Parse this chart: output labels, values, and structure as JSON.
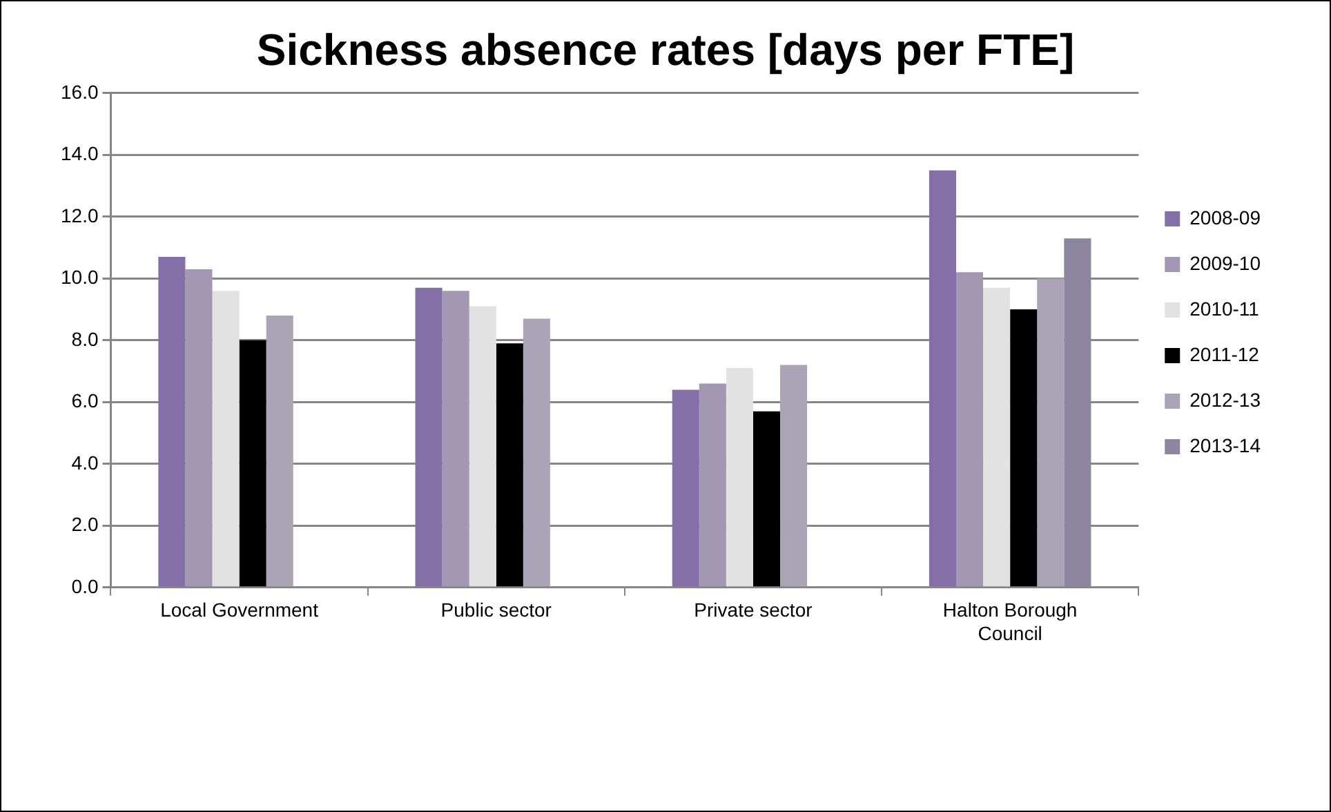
{
  "chart_data": {
    "type": "bar",
    "title": "Sickness absence rates [days per FTE]",
    "categories": [
      "Local Government",
      "Public sector",
      "Private sector",
      "Halton Borough Council"
    ],
    "series": [
      {
        "name": "2008-09",
        "color": "#8470a6",
        "values": [
          10.7,
          9.7,
          6.4,
          13.5
        ]
      },
      {
        "name": "2009-10",
        "color": "#a497b3",
        "values": [
          10.3,
          9.6,
          6.6,
          10.2
        ]
      },
      {
        "name": "2010-11",
        "color": "#e2e2e2",
        "values": [
          9.6,
          9.1,
          7.1,
          9.7
        ]
      },
      {
        "name": "2011-12",
        "color": "#000000",
        "values": [
          8.0,
          7.9,
          5.7,
          9.0
        ]
      },
      {
        "name": "2012-13",
        "color": "#aba4b6",
        "values": [
          8.8,
          8.7,
          7.2,
          10.0
        ]
      },
      {
        "name": "2013-14",
        "color": "#8e85a0",
        "values": [
          null,
          null,
          null,
          11.3
        ]
      }
    ],
    "ylim": [
      0,
      16
    ],
    "yticks": [
      {
        "value": 0,
        "label": "0.0"
      },
      {
        "value": 2,
        "label": "2.0"
      },
      {
        "value": 4,
        "label": "4.0"
      },
      {
        "value": 6,
        "label": "6.0"
      },
      {
        "value": 8,
        "label": "8.0"
      },
      {
        "value": 10,
        "label": "10.0"
      },
      {
        "value": 12,
        "label": "12.0"
      },
      {
        "value": 14,
        "label": "14.0"
      },
      {
        "value": 16,
        "label": "16.0"
      }
    ],
    "grid": "y",
    "legend": "right"
  }
}
